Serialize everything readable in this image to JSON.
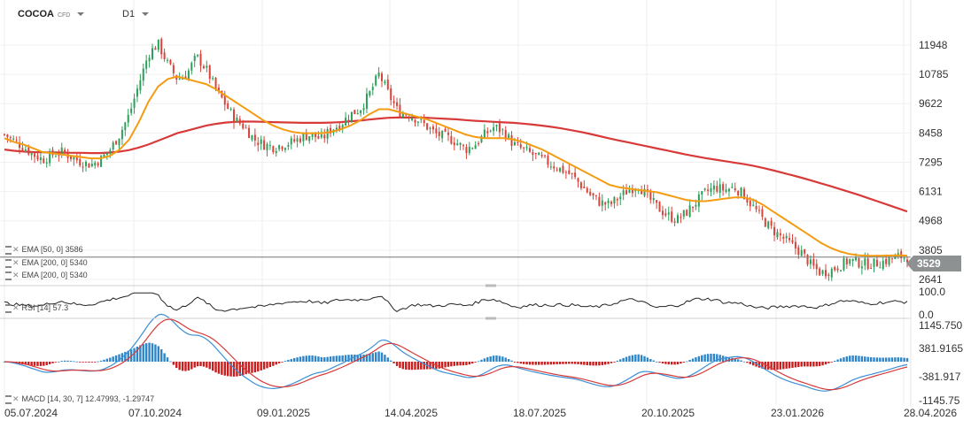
{
  "header": {
    "symbol": "COCOA",
    "instrument_type": "CFD",
    "timeframe": "D1"
  },
  "colors": {
    "ema50": "#f39c12",
    "ema200": "#d83a3a",
    "up": "#2e9e5b",
    "down": "#d9443a",
    "rsi": "#222222",
    "macd_line": "#3a8fd6",
    "signal_line": "#d83a3a",
    "hist_pos": "#2e86c9",
    "hist_neg": "#c81e1e",
    "price_label_bg": "#8d9192"
  },
  "legend": {
    "ema50": "EMA [50, 0] 3586",
    "ema200a": "EMA [200, 0] 5340",
    "ema200b": "EMA [200, 0] 5340",
    "rsi": "RSI [14] 57.3",
    "macd": "MACD [14, 30, 7] 12.47993, -1.29747"
  },
  "current_price_label": "3529",
  "chart_data": [
    {
      "type": "candlestick",
      "y_ticks": [
        "11948",
        "10785",
        "9622",
        "8458",
        "7295",
        "6131",
        "4968",
        "3805",
        "2641"
      ],
      "ylim": [
        2641,
        11948
      ],
      "current_price": 3529,
      "x_tick_labels": [
        "05.07.2024",
        "07.10.2024",
        "09.01.2025",
        "14.04.2025",
        "18.07.2025",
        "20.10.2025",
        "23.01.2026",
        "28.04.2026"
      ],
      "close_series_approx": [
        8400,
        8150,
        7900,
        7600,
        7400,
        7600,
        7700,
        7500,
        7300,
        7200,
        7400,
        7800,
        8400,
        9200,
        10400,
        11600,
        12000,
        11200,
        10600,
        10800,
        11500,
        11000,
        10200,
        9600,
        9000,
        8700,
        8200,
        8000,
        7900,
        8000,
        8100,
        8300,
        8400,
        8200,
        8600,
        8800,
        9200,
        9400,
        10000,
        10800,
        10000,
        9300,
        9200,
        9000,
        8700,
        8400,
        8300,
        8100,
        7800,
        8000,
        8400,
        8700,
        8500,
        8000,
        7800,
        7600,
        7400,
        7200,
        7000,
        6800,
        6400,
        6000,
        5700,
        5600,
        5900,
        6200,
        6400,
        5900,
        5500,
        5200,
        5000,
        5300,
        5700,
        6100,
        6300,
        6200,
        6300,
        6000,
        5500,
        5000,
        4600,
        4300,
        4000,
        3700,
        3200,
        2900,
        3000,
        3200,
        3400,
        3300,
        3250,
        3300,
        3400,
        3550,
        3529
      ],
      "series": [
        {
          "name": "EMA [50, 0]",
          "last": 3586,
          "values_approx": [
            8250,
            8100,
            8000,
            7850,
            7700,
            7650,
            7600,
            7550,
            7500,
            7450,
            7450,
            7550,
            7800,
            8200,
            8900,
            9700,
            10300,
            10600,
            10700,
            10600,
            10500,
            10400,
            10200,
            9950,
            9700,
            9450,
            9200,
            8950,
            8750,
            8600,
            8500,
            8450,
            8450,
            8450,
            8500,
            8600,
            8750,
            8950,
            9200,
            9400,
            9400,
            9300,
            9200,
            9100,
            9000,
            8850,
            8700,
            8550,
            8400,
            8300,
            8250,
            8250,
            8250,
            8200,
            8100,
            7950,
            7800,
            7600,
            7400,
            7200,
            7000,
            6800,
            6600,
            6400,
            6300,
            6250,
            6200,
            6150,
            6100,
            6000,
            5900,
            5800,
            5750,
            5750,
            5800,
            5850,
            5900,
            5900,
            5800,
            5600,
            5350,
            5100,
            4850,
            4600,
            4350,
            4100,
            3900,
            3750,
            3650,
            3600,
            3580,
            3580,
            3590,
            3600,
            3586
          ]
        },
        {
          "name": "EMA [200, 0]",
          "last": 5340,
          "values_approx": [
            7800,
            7750,
            7720,
            7700,
            7690,
            7680,
            7680,
            7670,
            7670,
            7660,
            7660,
            7680,
            7720,
            7780,
            7880,
            8000,
            8150,
            8300,
            8450,
            8550,
            8650,
            8750,
            8820,
            8870,
            8900,
            8910,
            8910,
            8900,
            8890,
            8880,
            8870,
            8860,
            8860,
            8860,
            8870,
            8890,
            8920,
            8950,
            8990,
            9030,
            9060,
            9070,
            9070,
            9070,
            9060,
            9040,
            9020,
            9000,
            8970,
            8940,
            8920,
            8900,
            8880,
            8860,
            8830,
            8790,
            8750,
            8700,
            8640,
            8570,
            8500,
            8420,
            8330,
            8240,
            8160,
            8080,
            8000,
            7920,
            7840,
            7760,
            7680,
            7600,
            7530,
            7460,
            7400,
            7340,
            7280,
            7220,
            7150,
            7070,
            6980,
            6880,
            6780,
            6680,
            6570,
            6460,
            6350,
            6230,
            6110,
            5990,
            5860,
            5730,
            5600,
            5470,
            5340
          ]
        }
      ]
    },
    {
      "type": "line",
      "title": "RSI [14]",
      "y_ticks": [
        "100.0",
        "0.0"
      ],
      "ylim": [
        0,
        100
      ],
      "last": 57.3
    },
    {
      "type": "bar",
      "title": "MACD [14, 30, 7]",
      "y_ticks": [
        "1145.750",
        "381.9165",
        "-381.917",
        "-1145.75"
      ],
      "ylim": [
        -1145.75,
        1145.75
      ],
      "series": [
        {
          "name": "MACD",
          "last": 12.47993
        },
        {
          "name": "Signal",
          "last": -1.29747
        }
      ]
    }
  ]
}
